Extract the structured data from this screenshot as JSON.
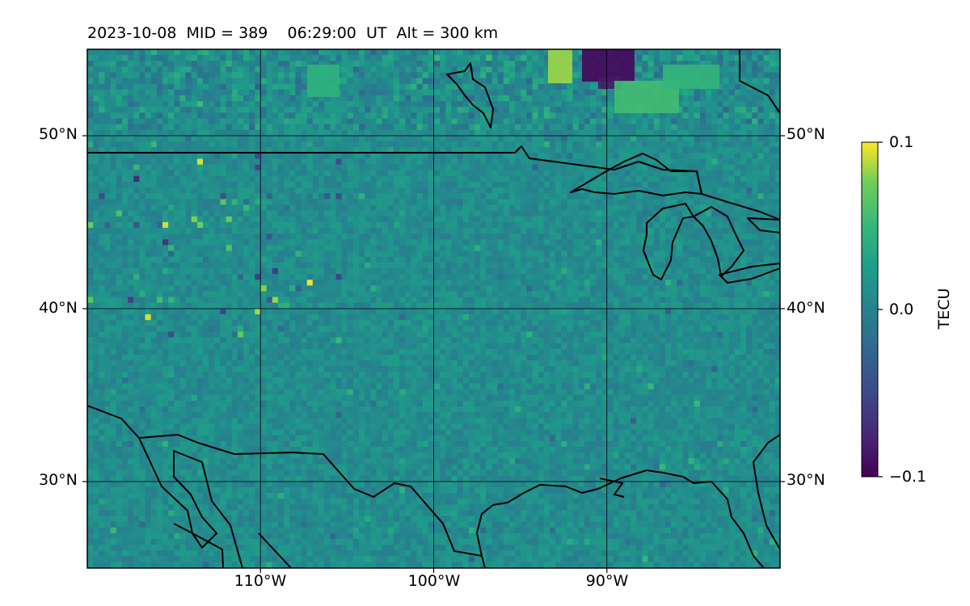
{
  "title": "2023-10-08  MID = 389    06:29:00  UT  Alt = 300 km",
  "map": {
    "projection": "equirectangular",
    "lon_range": [
      -120,
      -80
    ],
    "lat_range": [
      25,
      55
    ],
    "graticule": true,
    "lat_labels": [
      {
        "lat": 50,
        "text": "50°N"
      },
      {
        "lat": 40,
        "text": "40°N"
      },
      {
        "lat": 30,
        "text": "30°N"
      }
    ],
    "lon_labels": [
      {
        "lon": -110,
        "text": "110°W"
      },
      {
        "lon": -100,
        "text": "100°W"
      },
      {
        "lon": -90,
        "text": "90°W"
      }
    ],
    "colormap": "viridis",
    "value_range": [
      -0.1,
      0.1
    ],
    "features": [
      "coastlines",
      "international-borders",
      "great-lakes"
    ]
  },
  "colorbar": {
    "label": "TECU",
    "ticks": [
      {
        "value": 0.1,
        "text": "0.1"
      },
      {
        "value": 0.0,
        "text": "0.0"
      },
      {
        "value": -0.1,
        "text": "−0.1"
      }
    ]
  }
}
